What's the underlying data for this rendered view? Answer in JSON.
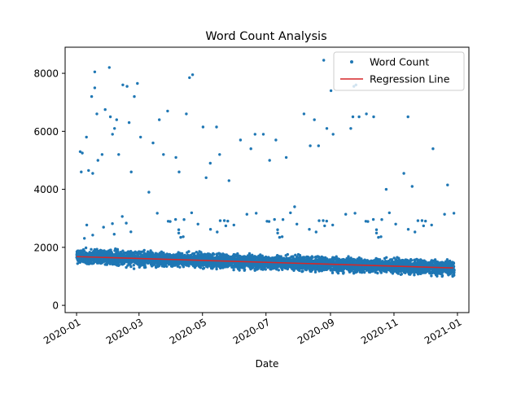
{
  "chart_data": {
    "type": "scatter",
    "title": "Word Count Analysis",
    "xlabel": "Date",
    "ylabel": "",
    "x_range": [
      "2019-12-21",
      "2021-01-12"
    ],
    "ylim": [
      -250,
      8900
    ],
    "y_ticks": [
      0,
      2000,
      4000,
      6000,
      8000
    ],
    "x_ticks": [
      {
        "date": "2020-01-01",
        "label": "2020-01"
      },
      {
        "date": "2020-03-01",
        "label": "2020-03"
      },
      {
        "date": "2020-05-01",
        "label": "2020-05"
      },
      {
        "date": "2020-07-01",
        "label": "2020-07"
      },
      {
        "date": "2020-09-01",
        "label": "2020-09"
      },
      {
        "date": "2020-11-01",
        "label": "2020-11"
      },
      {
        "date": "2021-01-01",
        "label": "2021-01"
      }
    ],
    "grid": false,
    "legend_position": "top-right",
    "series": [
      {
        "name": "Word Count",
        "kind": "points",
        "color": "#1f77b4",
        "dense_band": {
          "x_start": "2020-01-01",
          "x_end": "2020-12-28",
          "y_typical_min": 300,
          "y_typical_max": 2300
        },
        "outliers": [
          {
            "x": "2020-01-04",
            "y": 5300
          },
          {
            "x": "2020-01-05",
            "y": 4600
          },
          {
            "x": "2020-01-06",
            "y": 5250
          },
          {
            "x": "2020-01-10",
            "y": 5800
          },
          {
            "x": "2020-01-12",
            "y": 4650
          },
          {
            "x": "2020-01-15",
            "y": 7200
          },
          {
            "x": "2020-01-16",
            "y": 4550
          },
          {
            "x": "2020-01-18",
            "y": 8050
          },
          {
            "x": "2020-01-18",
            "y": 7500
          },
          {
            "x": "2020-01-20",
            "y": 6600
          },
          {
            "x": "2020-01-21",
            "y": 5000
          },
          {
            "x": "2020-01-25",
            "y": 5200
          },
          {
            "x": "2020-01-28",
            "y": 6750
          },
          {
            "x": "2020-02-01",
            "y": 8200
          },
          {
            "x": "2020-02-02",
            "y": 6500
          },
          {
            "x": "2020-02-04",
            "y": 5900
          },
          {
            "x": "2020-02-06",
            "y": 6100
          },
          {
            "x": "2020-02-08",
            "y": 6400
          },
          {
            "x": "2020-02-10",
            "y": 5200
          },
          {
            "x": "2020-02-14",
            "y": 7600
          },
          {
            "x": "2020-02-18",
            "y": 7550
          },
          {
            "x": "2020-02-20",
            "y": 6300
          },
          {
            "x": "2020-02-22",
            "y": 4600
          },
          {
            "x": "2020-02-25",
            "y": 7200
          },
          {
            "x": "2020-02-28",
            "y": 7650
          },
          {
            "x": "2020-03-02",
            "y": 5800
          },
          {
            "x": "2020-03-10",
            "y": 3900
          },
          {
            "x": "2020-03-14",
            "y": 5600
          },
          {
            "x": "2020-03-20",
            "y": 6400
          },
          {
            "x": "2020-03-24",
            "y": 5200
          },
          {
            "x": "2020-03-28",
            "y": 6700
          },
          {
            "x": "2020-04-05",
            "y": 5100
          },
          {
            "x": "2020-04-08",
            "y": 4600
          },
          {
            "x": "2020-04-15",
            "y": 6600
          },
          {
            "x": "2020-04-18",
            "y": 7850
          },
          {
            "x": "2020-04-21",
            "y": 7950
          },
          {
            "x": "2020-05-01",
            "y": 6150
          },
          {
            "x": "2020-05-04",
            "y": 4400
          },
          {
            "x": "2020-05-08",
            "y": 4900
          },
          {
            "x": "2020-05-14",
            "y": 6150
          },
          {
            "x": "2020-05-17",
            "y": 5200
          },
          {
            "x": "2020-05-26",
            "y": 4300
          },
          {
            "x": "2020-06-06",
            "y": 5700
          },
          {
            "x": "2020-06-16",
            "y": 5400
          },
          {
            "x": "2020-06-20",
            "y": 5900
          },
          {
            "x": "2020-06-28",
            "y": 5900
          },
          {
            "x": "2020-07-04",
            "y": 5000
          },
          {
            "x": "2020-07-10",
            "y": 5700
          },
          {
            "x": "2020-07-20",
            "y": 5100
          },
          {
            "x": "2020-07-28",
            "y": 3400
          },
          {
            "x": "2020-08-06",
            "y": 6600
          },
          {
            "x": "2020-08-12",
            "y": 5500
          },
          {
            "x": "2020-08-16",
            "y": 6400
          },
          {
            "x": "2020-08-20",
            "y": 5500
          },
          {
            "x": "2020-08-25",
            "y": 8450
          },
          {
            "x": "2020-08-28",
            "y": 6100
          },
          {
            "x": "2020-09-01",
            "y": 7400
          },
          {
            "x": "2020-09-03",
            "y": 5900
          },
          {
            "x": "2020-09-20",
            "y": 6100
          },
          {
            "x": "2020-09-22",
            "y": 6500
          },
          {
            "x": "2020-09-23",
            "y": 7550
          },
          {
            "x": "2020-09-25",
            "y": 7600
          },
          {
            "x": "2020-09-28",
            "y": 6500
          },
          {
            "x": "2020-10-05",
            "y": 6600
          },
          {
            "x": "2020-10-12",
            "y": 6500
          },
          {
            "x": "2020-10-24",
            "y": 4000
          },
          {
            "x": "2020-11-10",
            "y": 4550
          },
          {
            "x": "2020-11-14",
            "y": 6500
          },
          {
            "x": "2020-11-18",
            "y": 4100
          },
          {
            "x": "2020-12-08",
            "y": 5400
          },
          {
            "x": "2020-12-22",
            "y": 4150
          }
        ]
      },
      {
        "name": "Regression Line",
        "kind": "line",
        "color": "#d62728",
        "points": [
          {
            "x": "2020-01-01",
            "y": 1680
          },
          {
            "x": "2020-12-28",
            "y": 1290
          }
        ]
      }
    ]
  }
}
